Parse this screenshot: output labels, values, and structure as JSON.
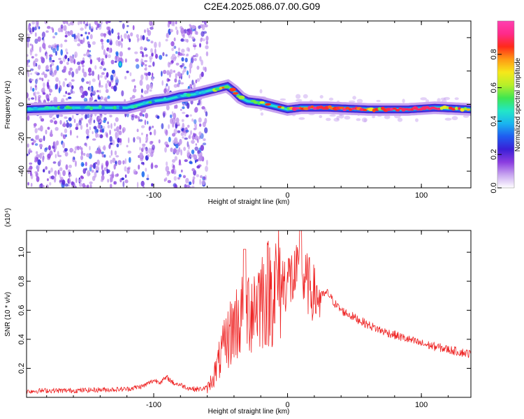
{
  "title": "C2E4.2025.086.07.00.G09",
  "chart_data": [
    {
      "type": "heatmap",
      "xlabel": "Height of straight line (km)",
      "ylabel": "Frequency (Hz)",
      "xlim": [
        -195,
        137
      ],
      "ylim": [
        -50,
        50
      ],
      "xticks": [
        -100,
        0,
        100
      ],
      "yticks": [
        -40,
        -20,
        0,
        20,
        40
      ],
      "colorbar": {
        "label": "Normalized spectral amplitude",
        "range": [
          0,
          1
        ],
        "ticks": [
          "0.0",
          "0.2",
          "0.4",
          "0.6",
          "0.8"
        ],
        "colors": [
          "#ffffff",
          "#c9a7f0",
          "#8b3de0",
          "#3a1fd6",
          "#1f5cf0",
          "#1ab4f0",
          "#22e6c8",
          "#3ee650",
          "#b6ef2a",
          "#f6e81a",
          "#ff9a14",
          "#ff2a1a",
          "#ff2a8a",
          "#ff3fb0"
        ]
      },
      "ridge_frequency_hz": {
        "x": [
          -195,
          -160,
          -130,
          -120,
          -110,
          -100,
          -90,
          -80,
          -70,
          -60,
          -50,
          -45,
          -40,
          -35,
          -30,
          -20,
          -10,
          0,
          10,
          30,
          60,
          90,
          110,
          137
        ],
        "y": [
          -3,
          -2,
          -2,
          -2,
          0,
          2,
          3,
          5,
          6,
          8,
          10,
          11,
          8,
          4,
          2,
          1,
          -1,
          -3,
          -2,
          -2,
          -3,
          -3,
          -2,
          -3
        ]
      }
    },
    {
      "type": "line",
      "xlabel": "Height of straight line (km)",
      "ylabel": "SNR (10 * v/v)",
      "y_scale_label": "(x10⁴)",
      "xlim": [
        -195,
        137
      ],
      "ylim": [
        0,
        1.15
      ],
      "xticks": [
        -100,
        0,
        100
      ],
      "yticks": [
        "0.2",
        "0.4",
        "0.6",
        "0.8",
        "1.0"
      ],
      "series": [
        {
          "color": "#ee2222",
          "x": [
            -195,
            -180,
            -160,
            -140,
            -120,
            -108,
            -100,
            -95,
            -90,
            -85,
            -80,
            -75,
            -70,
            -65,
            -60,
            -55,
            -50,
            -45,
            -40,
            -35,
            -30,
            -25,
            -20,
            -15,
            -10,
            -5,
            0,
            5,
            10,
            15,
            20,
            25,
            30,
            35,
            40,
            50,
            60,
            70,
            80,
            90,
            100,
            110,
            120,
            130,
            137
          ],
          "y": [
            0.035,
            0.04,
            0.04,
            0.045,
            0.05,
            0.07,
            0.11,
            0.1,
            0.13,
            0.09,
            0.08,
            0.06,
            0.05,
            0.05,
            0.06,
            0.15,
            0.28,
            0.4,
            0.5,
            0.55,
            0.6,
            0.65,
            0.7,
            0.72,
            0.76,
            0.8,
            0.84,
            0.84,
            0.85,
            0.8,
            0.73,
            0.7,
            0.72,
            0.65,
            0.6,
            0.55,
            0.5,
            0.46,
            0.43,
            0.4,
            0.37,
            0.35,
            0.33,
            0.31,
            0.3
          ]
        }
      ]
    }
  ]
}
